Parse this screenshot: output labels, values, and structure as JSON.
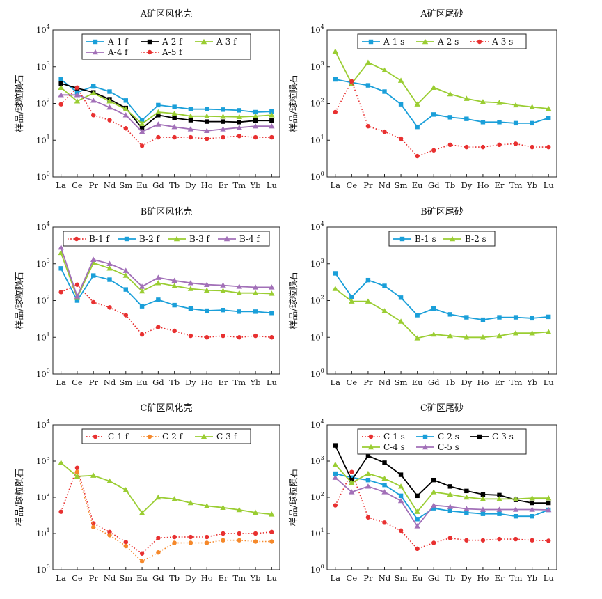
{
  "chart_data": [
    {
      "type": "line",
      "title": "A矿区风化壳",
      "ylabel": "样品/球粒陨石",
      "yscale": "log",
      "ylim": [
        1,
        10000
      ],
      "categories": [
        "La",
        "Ce",
        "Pr",
        "Nd",
        "Sm",
        "Eu",
        "Gd",
        "Tb",
        "Dy",
        "Ho",
        "Er",
        "Tm",
        "Yb",
        "Lu"
      ],
      "legend_cols": 3,
      "series": [
        {
          "name": "A-1 f",
          "color": "#1a9fd9",
          "marker": "square",
          "dotted": false,
          "values": [
            450,
            200,
            290,
            210,
            120,
            35,
            90,
            80,
            70,
            70,
            68,
            65,
            58,
            60
          ]
        },
        {
          "name": "A-2 f",
          "color": "#000000",
          "marker": "square",
          "dotted": false,
          "values": [
            350,
            260,
            200,
            130,
            75,
            21,
            48,
            40,
            35,
            32,
            32,
            31,
            34,
            34
          ]
        },
        {
          "name": "A-3 f",
          "color": "#9acd32",
          "marker": "triangle",
          "dotted": false,
          "values": [
            270,
            115,
            190,
            115,
            70,
            28,
            58,
            53,
            45,
            45,
            44,
            43,
            45,
            48
          ]
        },
        {
          "name": "A-4 f",
          "color": "#a270b8",
          "marker": "triangle",
          "dotted": false,
          "values": [
            170,
            170,
            120,
            78,
            48,
            17,
            27,
            23,
            20,
            18,
            20,
            22,
            24,
            24
          ]
        },
        {
          "name": "A-5 f",
          "color": "#e83030",
          "marker": "circle",
          "dotted": true,
          "values": [
            95,
            270,
            48,
            35,
            21,
            7,
            12,
            12,
            12,
            11,
            12,
            13,
            12,
            12
          ]
        }
      ]
    },
    {
      "type": "line",
      "title": "A矿区尾砂",
      "ylabel": "样品/球粒陨石",
      "yscale": "log",
      "ylim": [
        1,
        10000
      ],
      "categories": [
        "La",
        "Ce",
        "Pr",
        "Nd",
        "Sm",
        "Eu",
        "Gd",
        "Tb",
        "Dy",
        "Ho",
        "Er",
        "Tm",
        "Yb",
        "Lu"
      ],
      "legend_cols": 3,
      "series": [
        {
          "name": "A-1 s",
          "color": "#1a9fd9",
          "marker": "square",
          "dotted": false,
          "values": [
            450,
            370,
            310,
            210,
            95,
            23,
            50,
            42,
            38,
            31,
            31,
            29,
            29,
            40
          ]
        },
        {
          "name": "A-2 s",
          "color": "#9acd32",
          "marker": "triangle",
          "dotted": false,
          "values": [
            2600,
            350,
            1300,
            800,
            420,
            95,
            270,
            180,
            135,
            110,
            105,
            90,
            80,
            72
          ]
        },
        {
          "name": "A-3 s",
          "color": "#e83030",
          "marker": "circle",
          "dotted": true,
          "values": [
            58,
            400,
            24,
            17,
            11,
            3.7,
            5.3,
            7.5,
            6.5,
            6.5,
            7.5,
            8,
            6.5,
            6.5
          ]
        }
      ]
    },
    {
      "type": "line",
      "title": "B矿区风化壳",
      "ylabel": "样品/球粒陨石",
      "yscale": "log",
      "ylim": [
        1,
        10000
      ],
      "categories": [
        "La",
        "Ce",
        "Pr",
        "Nd",
        "Sm",
        "Eu",
        "Gd",
        "Tb",
        "Dy",
        "Ho",
        "Er",
        "Tm",
        "Yb",
        "Lu"
      ],
      "legend_cols": 4,
      "series": [
        {
          "name": "B-1 f",
          "color": "#e83030",
          "marker": "circle",
          "dotted": true,
          "values": [
            170,
            270,
            90,
            65,
            40,
            12,
            19,
            15,
            11,
            10,
            11,
            10,
            11,
            10
          ]
        },
        {
          "name": "B-2 f",
          "color": "#1a9fd9",
          "marker": "square",
          "dotted": false,
          "values": [
            750,
            100,
            480,
            370,
            200,
            70,
            105,
            75,
            60,
            53,
            55,
            50,
            50,
            46
          ]
        },
        {
          "name": "B-3 f",
          "color": "#9acd32",
          "marker": "triangle",
          "dotted": false,
          "values": [
            2000,
            120,
            1050,
            750,
            480,
            180,
            300,
            250,
            210,
            190,
            185,
            160,
            160,
            155
          ]
        },
        {
          "name": "B-4 f",
          "color": "#a270b8",
          "marker": "triangle",
          "dotted": false,
          "values": [
            2800,
            130,
            1300,
            1000,
            650,
            240,
            420,
            350,
            300,
            270,
            260,
            240,
            230,
            230
          ]
        }
      ]
    },
    {
      "type": "line",
      "title": "B矿区尾砂",
      "ylabel": "样品/球粒陨石",
      "yscale": "log",
      "ylim": [
        1,
        10000
      ],
      "categories": [
        "La",
        "Ce",
        "Pr",
        "Nd",
        "Sm",
        "Eu",
        "Gd",
        "Tb",
        "Dy",
        "Ho",
        "Er",
        "Tm",
        "Yb",
        "Lu"
      ],
      "legend_cols": 2,
      "series": [
        {
          "name": "B-1 s",
          "color": "#1a9fd9",
          "marker": "square",
          "dotted": false,
          "values": [
            550,
            125,
            360,
            250,
            120,
            40,
            60,
            42,
            35,
            30,
            35,
            35,
            33,
            36
          ]
        },
        {
          "name": "B-2 s",
          "color": "#9acd32",
          "marker": "triangle",
          "dotted": false,
          "values": [
            210,
            95,
            95,
            52,
            27,
            9.5,
            12,
            11,
            10,
            10,
            11,
            13,
            13,
            14
          ]
        }
      ]
    },
    {
      "type": "line",
      "title": "C矿区风化壳",
      "ylabel": "样品/球粒陨石",
      "yscale": "log",
      "ylim": [
        1,
        10000
      ],
      "categories": [
        "La",
        "Ce",
        "Pr",
        "Nd",
        "Sm",
        "Eu",
        "Gd",
        "Tb",
        "Dy",
        "Ho",
        "Er",
        "Tm",
        "Yb",
        "Lu"
      ],
      "legend_cols": 3,
      "series": [
        {
          "name": "C-1 f",
          "color": "#e83030",
          "marker": "circle",
          "dotted": true,
          "values": [
            40,
            650,
            19,
            11,
            5.8,
            2.8,
            7.5,
            8,
            8,
            8,
            10,
            10,
            10,
            11
          ]
        },
        {
          "name": "C-2 f",
          "color": "#f5882a",
          "marker": "circle",
          "dotted": true,
          "values": [
            null,
            500,
            15,
            9,
            4.5,
            1.7,
            3,
            5.5,
            5.5,
            5.5,
            6.5,
            6.5,
            6,
            6
          ]
        },
        {
          "name": "C-3 f",
          "color": "#9acd32",
          "marker": "triangle",
          "dotted": false,
          "values": [
            900,
            380,
            400,
            280,
            160,
            37,
            100,
            90,
            70,
            58,
            52,
            45,
            38,
            34
          ]
        }
      ]
    },
    {
      "type": "line",
      "title": "C矿区尾砂",
      "ylabel": "样品/球粒陨石",
      "yscale": "log",
      "ylim": [
        1,
        10000
      ],
      "categories": [
        "La",
        "Ce",
        "Pr",
        "Nd",
        "Sm",
        "Eu",
        "Gd",
        "Tb",
        "Dy",
        "Ho",
        "Er",
        "Tm",
        "Yb",
        "Lu"
      ],
      "legend_cols": 3,
      "series": [
        {
          "name": "C-1 s",
          "color": "#e83030",
          "marker": "circle",
          "dotted": true,
          "values": [
            60,
            500,
            28,
            20,
            12,
            3.8,
            5.5,
            7.5,
            6.5,
            6.5,
            7,
            7,
            6.5,
            6.3
          ]
        },
        {
          "name": "C-2 s",
          "color": "#1a9fd9",
          "marker": "square",
          "dotted": false,
          "values": [
            450,
            350,
            300,
            220,
            110,
            25,
            50,
            42,
            38,
            35,
            35,
            30,
            30,
            45
          ]
        },
        {
          "name": "C-3 s",
          "color": "#000000",
          "marker": "square",
          "dotted": false,
          "values": [
            2700,
            300,
            1400,
            900,
            420,
            110,
            300,
            200,
            150,
            120,
            115,
            85,
            70,
            70
          ]
        },
        {
          "name": "C-4 s",
          "color": "#9acd32",
          "marker": "triangle",
          "dotted": false,
          "values": [
            800,
            250,
            450,
            330,
            200,
            40,
            140,
            120,
            100,
            90,
            90,
            90,
            95,
            95
          ]
        },
        {
          "name": "C-5 s",
          "color": "#a270b8",
          "marker": "triangle",
          "dotted": false,
          "values": [
            350,
            140,
            200,
            140,
            80,
            16,
            60,
            55,
            48,
            46,
            46,
            46,
            46,
            45
          ]
        }
      ]
    }
  ]
}
